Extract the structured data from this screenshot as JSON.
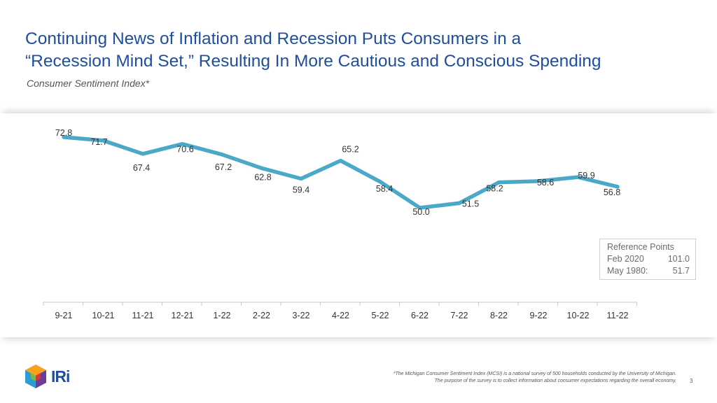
{
  "header": {
    "title_line1": "Continuing News of Inflation and Recession Puts Consumers in a",
    "title_line2": "“Recession Mind Set,” Resulting In More Cautious and Conscious Spending",
    "subtitle": "Consumer Sentiment Index*"
  },
  "chart_data": {
    "type": "line",
    "title": "Consumer Sentiment Index*",
    "categories": [
      "9-21",
      "10-21",
      "11-21",
      "12-21",
      "1-22",
      "2-22",
      "3-22",
      "4-22",
      "5-22",
      "6-22",
      "7-22",
      "8-22",
      "9-22",
      "10-22",
      "11-22"
    ],
    "series": [
      {
        "name": "Consumer Sentiment Index",
        "values": [
          72.8,
          71.7,
          67.4,
          70.6,
          67.2,
          62.8,
          59.4,
          65.2,
          58.4,
          50.0,
          51.5,
          58.2,
          58.6,
          59.9,
          56.8
        ]
      }
    ],
    "data_labels": [
      "72.8",
      "71.7",
      "67.4",
      "70.6",
      "67.2",
      "62.8",
      "59.4",
      "65.2",
      "58.4",
      "50.0",
      "51.5",
      "58.2",
      "58.6",
      "59.9",
      "56.8"
    ],
    "line_color": "#4aa8c8",
    "xlabel": "",
    "ylabel": "",
    "ylim": [
      50,
      72.8
    ],
    "grid": false,
    "legend": "none"
  },
  "reference": {
    "title": "Reference Points",
    "rows": [
      {
        "label": "Feb 2020",
        "value": "101.0"
      },
      {
        "label": "May 1980:",
        "value": "51.7"
      }
    ]
  },
  "footnote": {
    "line1": "*The Michigan Consumer Sentiment Index (MCSI) is a national survey of 500 households conducted by the University of Michigan.",
    "line2": "The purpose of the survey is to collect information about consumer expectations regarding the overall economy."
  },
  "page_number": "3",
  "logo": {
    "text": "IRi",
    "icon": "iri-cube-logo-icon"
  }
}
